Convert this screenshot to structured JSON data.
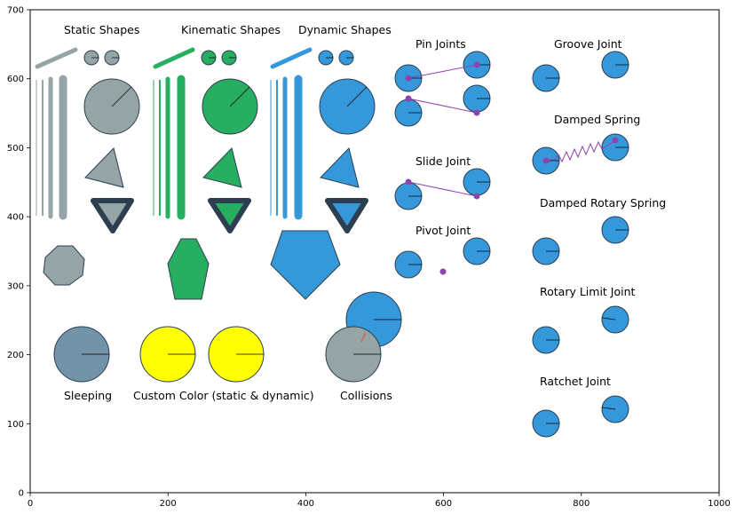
{
  "labels": {
    "static_shapes": "Static Shapes",
    "kinematic_shapes": "Kinematic Shapes",
    "dynamic_shapes": "Dynamic Shapes",
    "pin_joints": "Pin Joints",
    "groove_joint": "Groove Joint",
    "damped_spring": "Damped Spring",
    "slide_joint": "Slide Joint",
    "damped_rotary_spring": "Damped Rotary Spring",
    "pivot_joint": "Pivot Joint",
    "rotary_limit_joint": "Rotary Limit Joint",
    "ratchet_joint": "Ratchet Joint",
    "sleeping": "Sleeping",
    "custom_color": "Custom Color (static & dynamic)",
    "collisions": "Collisions"
  },
  "axes": {
    "xlim": [
      0,
      1000
    ],
    "ylim": [
      0,
      700
    ],
    "x_ticks": [
      "0",
      "200",
      "400",
      "600",
      "800",
      "1000"
    ],
    "y_ticks": [
      "0",
      "100",
      "200",
      "300",
      "400",
      "500",
      "600",
      "700"
    ]
  },
  "colors": {
    "static": "#95a5a6",
    "kinematic": "#27ae60",
    "dynamic": "#3498db",
    "joint": "#8e44ad",
    "outline": "#2c3e50",
    "custom": "#ffff00",
    "sleeping": "#7293a8"
  }
}
